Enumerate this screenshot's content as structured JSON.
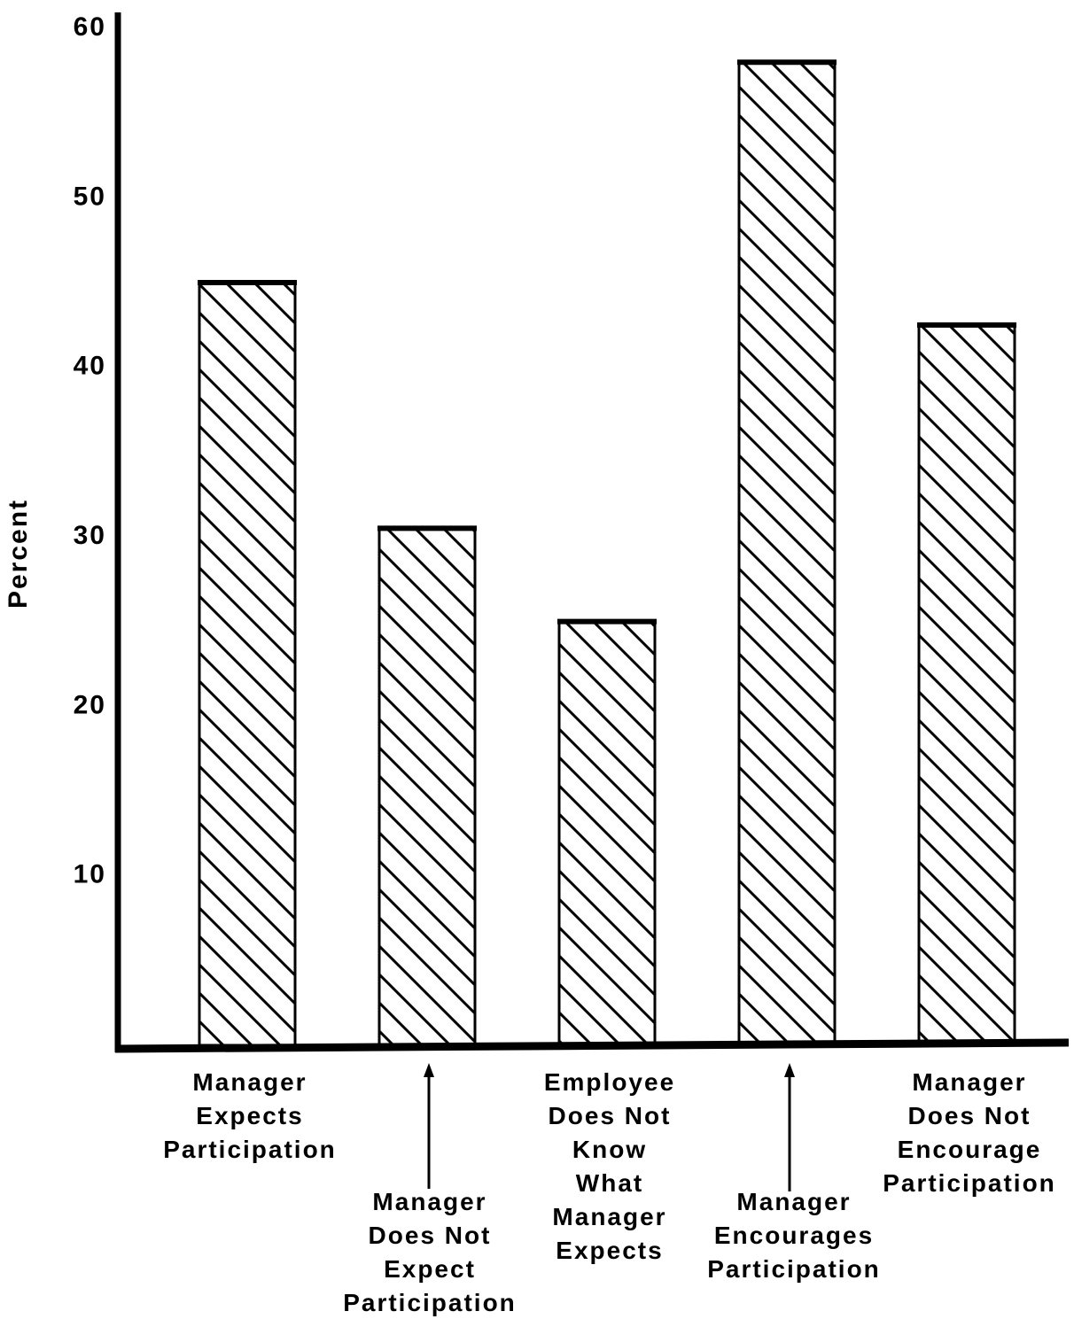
{
  "chart_data": {
    "type": "bar",
    "ylabel": "Percent",
    "categories": [
      "Manager\nExpects\nParticipation",
      "Manager\nDoes Not\nExpect\nParticipation",
      "Employee\nDoes Not\nKnow\nWhat\nManager\nExpects",
      "Manager\nEncourages\nParticipation",
      "Manager\nDoes Not\nEncourage\nParticipation"
    ],
    "values": [
      45,
      30.5,
      25,
      58,
      42.5
    ],
    "color": "#000000",
    "ylim": [
      0,
      60
    ],
    "yticks": [
      10,
      20,
      30,
      40,
      50,
      60
    ],
    "grid": false
  }
}
